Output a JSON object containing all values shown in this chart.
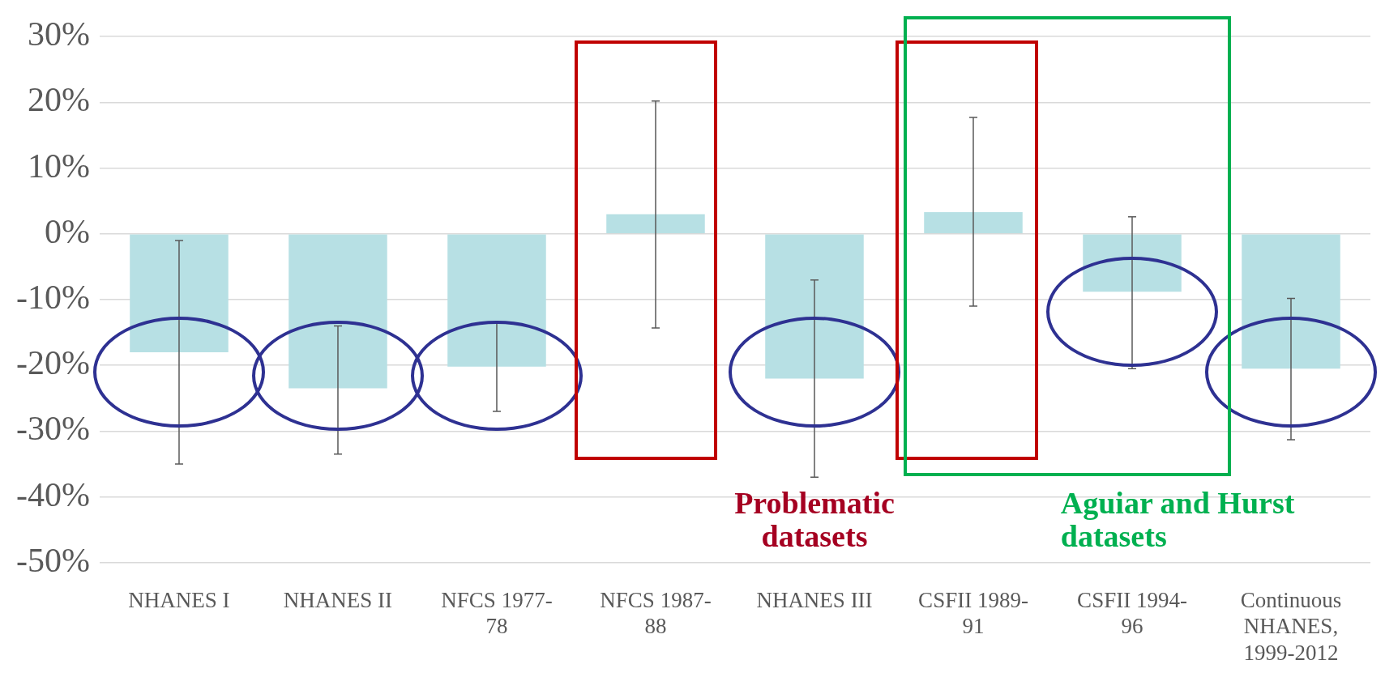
{
  "chart_data": {
    "type": "bar",
    "categories": [
      "NHANES I",
      "NHANES II",
      "NFCS 1977-78",
      "NFCS 1987-88",
      "NHANES III",
      "CSFII 1989-91",
      "CSFII 1994-96",
      "Continuous NHANES, 1999-2012"
    ],
    "values": [
      -18,
      -23.5,
      -20.2,
      3,
      -22,
      3.3,
      -8.8,
      -20.5
    ],
    "errors": [
      [
        -35,
        -1
      ],
      [
        -33.5,
        -14
      ],
      [
        -27,
        -13.5
      ],
      [
        -14.3,
        20.2
      ],
      [
        -37,
        -7
      ],
      [
        -11,
        17.7
      ],
      [
        -20.5,
        2.6
      ],
      [
        -31.3,
        -9.8
      ]
    ],
    "color": "#b7e0e4",
    "ylim": [
      -50,
      30
    ],
    "yticks": [
      {
        "value": -50,
        "label": "-50%"
      },
      {
        "value": -40,
        "label": "-40%"
      },
      {
        "value": -30,
        "label": "-30%"
      },
      {
        "value": -20,
        "label": "-20%"
      },
      {
        "value": -10,
        "label": "-10%"
      },
      {
        "value": 0,
        "label": "0%"
      },
      {
        "value": 10,
        "label": "10%"
      },
      {
        "value": 20,
        "label": "20%"
      },
      {
        "value": 30,
        "label": "30%"
      }
    ],
    "grid": "y",
    "legend": false,
    "annotations": [
      "Problematic datasets",
      "Aguiar and Hurst datasets"
    ]
  }
}
